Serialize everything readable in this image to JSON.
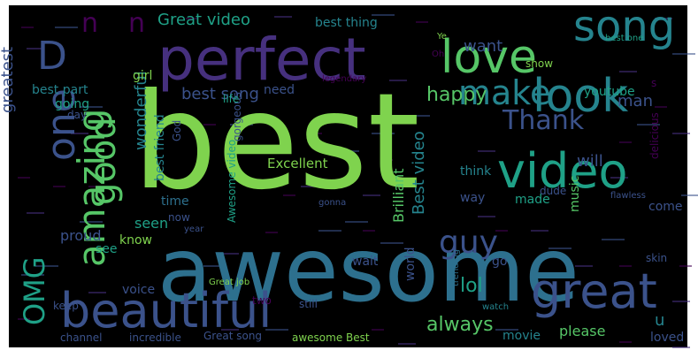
{
  "cloud": {
    "background": "#000000",
    "palette": {
      "green": "#7fd34e",
      "teal": "#2d708e",
      "purple": "#46307e",
      "lime": "#56c667",
      "sea": "#25848e",
      "indigo": "#3b528b",
      "mint": "#1fa187",
      "dark": "#440154"
    },
    "words": [
      "best",
      "awesome",
      "perfect",
      "beautiful",
      "love",
      "video",
      "look",
      "song",
      "great",
      "amazing",
      "good",
      "one",
      "D",
      "OMG",
      "make",
      "guy",
      "Thank",
      "n",
      "n",
      "happy",
      "always",
      "lol",
      "best song",
      "Great video",
      "wonderful",
      "greatest",
      "Best video",
      "Brilliant",
      "Excellent",
      "man",
      "want",
      "best thing",
      "best friend",
      "youtube",
      "need",
      "girl",
      "time",
      "seen",
      "see",
      "know",
      "voice",
      "proud",
      "will",
      "music",
      "think",
      "made",
      "way",
      "come",
      "world",
      "please",
      "movie",
      "loved",
      "u",
      "show",
      "wait",
      "go",
      "still",
      "two",
      "Great job",
      "Great song",
      "incredible",
      "channel",
      "keep",
      "awesome Best",
      "trending",
      "flawless",
      "gorgeous",
      "life",
      "God",
      "gonna",
      "dude",
      "skin",
      "now",
      "year",
      "going",
      "day",
      "best part",
      "best one",
      "Ye",
      "Oh",
      "s",
      "delicious",
      "legendary",
      "Awesome video",
      "watch"
    ]
  }
}
